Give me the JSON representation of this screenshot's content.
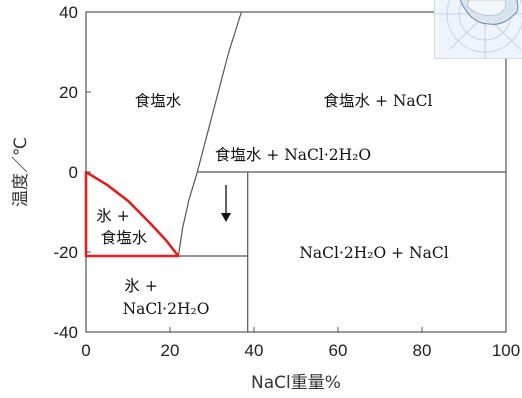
{
  "chart_data": {
    "type": "phase-diagram",
    "xlabel": "NaCl重量%",
    "ylabel": "温度／℃",
    "xlim": [
      0,
      100
    ],
    "ylim": [
      -40,
      40
    ],
    "x_ticks": [
      "0",
      "20",
      "40",
      "60",
      "80",
      "100"
    ],
    "y_ticks": [
      "40",
      "20",
      "0",
      "-20",
      "-40"
    ],
    "eutectic": {
      "x": 22,
      "y": -21
    },
    "peritectic": {
      "x": 26.5,
      "y": 0
    },
    "boundaries": {
      "ice_liquidus": [
        [
          0,
          0
        ],
        [
          5,
          -3.2
        ],
        [
          10,
          -7.2
        ],
        [
          15,
          -12.5
        ],
        [
          19,
          -17
        ],
        [
          22,
          -21
        ]
      ],
      "dihydrate_liquidus": [
        [
          22,
          -21
        ],
        [
          23,
          -14
        ],
        [
          24.5,
          -7
        ],
        [
          26.5,
          0
        ]
      ],
      "nacl_liquidus": [
        [
          26.5,
          0
        ],
        [
          30,
          14
        ],
        [
          34,
          30
        ],
        [
          37,
          40
        ]
      ],
      "eutectic_line": [
        [
          0,
          -21
        ],
        [
          38.5,
          -21
        ]
      ],
      "peritectic_line": [
        [
          26.5,
          0
        ],
        [
          100,
          0
        ]
      ],
      "dihydrate_composition": [
        [
          38.5,
          0
        ],
        [
          38.5,
          -40
        ]
      ]
    },
    "regions": {
      "brine": "食塩水",
      "brine_nacl": "食塩水 + NaCl",
      "brine_dihydrate": "食塩水 + NaCl·2H₂O",
      "ice_brine_1": "氷 +",
      "ice_brine_2": "食塩水",
      "ice_dihydrate_1": "氷 +",
      "ice_dihydrate_2": "NaCl·2H₂O",
      "dihydrate_nacl": "NaCl·2H₂O + NaCl"
    },
    "highlight_color": "#e02020",
    "grid": false
  },
  "inset": {
    "icon": "antarctica-map-icon"
  }
}
